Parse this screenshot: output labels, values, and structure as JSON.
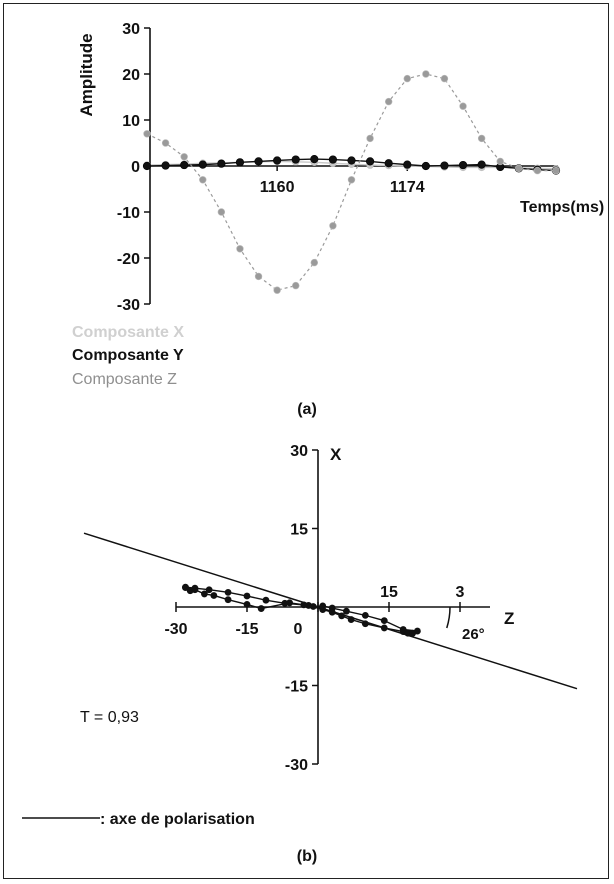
{
  "chart_data": [
    {
      "type": "line",
      "panel_label": "(a)",
      "ylabel": "Amplitude",
      "xlabel": "Temps(ms)",
      "ylim": [
        -30,
        30
      ],
      "yticks": [
        30,
        20,
        10,
        0,
        -10,
        -20,
        -30
      ],
      "xticks": [
        1160,
        1174
      ],
      "x": [
        1146,
        1148,
        1150,
        1152,
        1154,
        1156,
        1158,
        1160,
        1162,
        1164,
        1166,
        1168,
        1170,
        1172,
        1174,
        1176,
        1178,
        1180,
        1182,
        1184,
        1186,
        1188,
        1190
      ],
      "legend": [
        "Composante X",
        "Composante Y",
        "Composante Z"
      ],
      "series": [
        {
          "name": "Composante X",
          "color": "#c8c8c8",
          "values": [
            0.2,
            0.3,
            0.4,
            0.6,
            0.7,
            0.8,
            0.9,
            1.0,
            0.9,
            0.8,
            0.6,
            0.4,
            0.2,
            0.1,
            0.0,
            -0.1,
            -0.2,
            -0.3,
            -0.3,
            -0.3,
            -0.4,
            -0.5,
            -0.6
          ]
        },
        {
          "name": "Composante Y",
          "color": "#111111",
          "values": [
            0.0,
            0.1,
            0.2,
            0.3,
            0.5,
            0.8,
            1.0,
            1.2,
            1.4,
            1.5,
            1.4,
            1.2,
            1.0,
            0.6,
            0.3,
            0.0,
            0.1,
            0.2,
            0.3,
            -0.2,
            -0.5,
            -0.8,
            -1.0
          ]
        },
        {
          "name": "Composante Z",
          "color": "#9a9a9a",
          "values": [
            7,
            5,
            2,
            -3,
            -10,
            -18,
            -24,
            -27,
            -26,
            -21,
            -13,
            -3,
            6,
            14,
            19,
            20,
            19,
            13,
            6,
            1,
            -0.5,
            -1,
            -1
          ]
        }
      ]
    },
    {
      "type": "scatter",
      "panel_label": "(b)",
      "xlabel": "Z",
      "ylabel": "X",
      "xlim": [
        -30,
        30
      ],
      "ylim": [
        -30,
        30
      ],
      "xtick_labels": [
        "-30",
        "-15",
        "0",
        "15",
        "3"
      ],
      "ytick_labels": [
        "30",
        "15",
        "-15",
        "-30"
      ],
      "angle_label": "26°",
      "annotation": "T = 0,93",
      "polarization_axis_legend": ": axe de polarisation",
      "points": [
        [
          -28,
          3.7
        ],
        [
          -27,
          3.1
        ],
        [
          -26,
          3.3
        ],
        [
          -24,
          2.5
        ],
        [
          -22,
          2.2
        ],
        [
          -19,
          1.4
        ],
        [
          -15,
          0.5
        ],
        [
          -12,
          -0.3
        ],
        [
          -6,
          0.8
        ],
        [
          -2,
          0.3
        ],
        [
          1,
          -0.5
        ],
        [
          3,
          -1.0
        ],
        [
          5,
          -1.7
        ],
        [
          7,
          -2.4
        ],
        [
          10,
          -3.2
        ],
        [
          14,
          -4.0
        ],
        [
          18,
          -4.7
        ],
        [
          19,
          -5.0
        ],
        [
          20,
          -5.0
        ],
        [
          21,
          -4.6
        ],
        [
          18,
          -4.3
        ],
        [
          14,
          -2.6
        ],
        [
          10,
          -1.6
        ],
        [
          6,
          -0.8
        ],
        [
          3,
          -0.2
        ],
        [
          1,
          0.2
        ],
        [
          -1,
          0.1
        ],
        [
          -3,
          0.4
        ],
        [
          -7,
          0.7
        ],
        [
          -11,
          1.3
        ],
        [
          -15,
          2.1
        ],
        [
          -19,
          2.8
        ],
        [
          -23,
          3.3
        ],
        [
          -26,
          3.6
        ],
        [
          -28,
          3.8
        ]
      ],
      "polarization_angle_deg": 26
    }
  ]
}
